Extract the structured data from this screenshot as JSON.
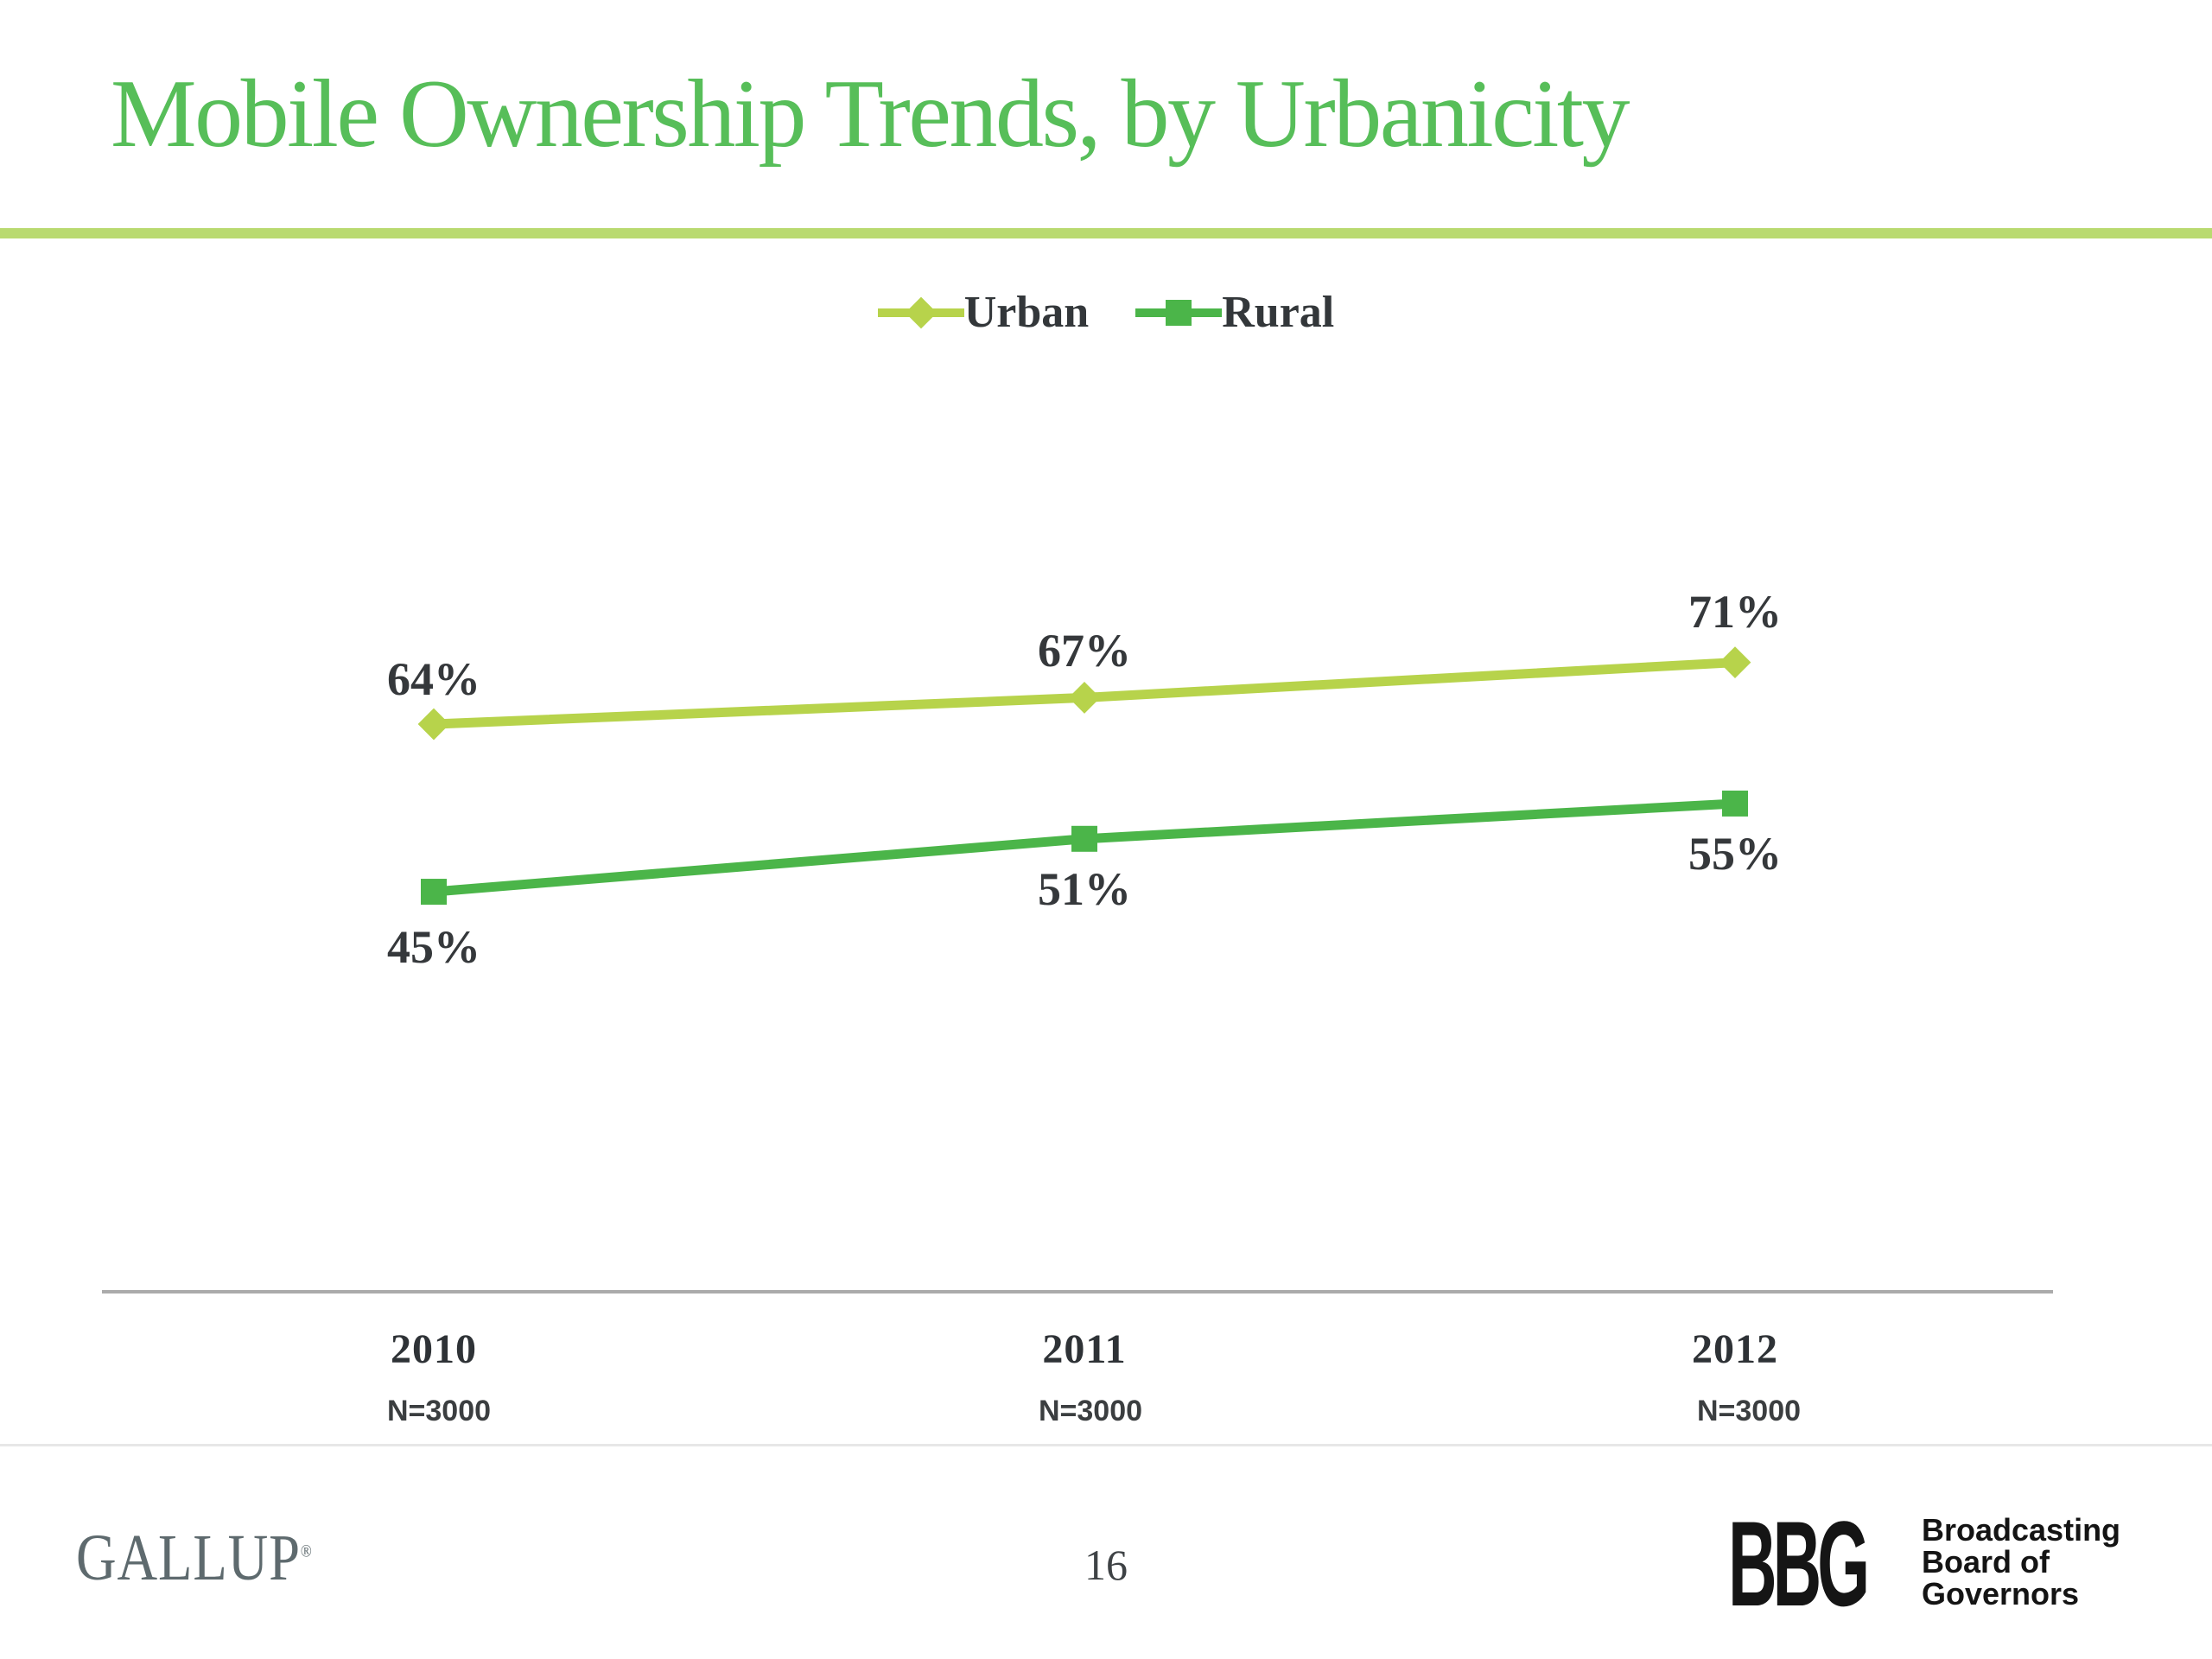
{
  "slide": {
    "title": "Mobile Ownership Trends, by Urbanicity",
    "page_number": "16"
  },
  "colors": {
    "title_green": "#57BE59",
    "divider_green": "#B9DA70",
    "urban_green": "#B7D34B",
    "rural_green": "#4BB549",
    "label_dark": "#35383B",
    "axis_gray": "#ABABAB",
    "gallup_gray": "#5E6A6E",
    "bbg_black": "#151515"
  },
  "chart_data": {
    "type": "line",
    "categories": [
      "2010",
      "2011",
      "2012"
    ],
    "sample_sizes": [
      "N=3000",
      "N=3000",
      "N=3000"
    ],
    "series": [
      {
        "name": "Urban",
        "marker": "diamond",
        "color": "#B7D34B",
        "values": [
          64,
          67,
          71
        ],
        "labels": [
          "64%",
          "67%",
          "71%"
        ]
      },
      {
        "name": "Rural",
        "marker": "square",
        "color": "#4BB549",
        "values": [
          45,
          51,
          55
        ],
        "labels": [
          "45%",
          "51%",
          "55%"
        ]
      }
    ],
    "title": "Mobile Ownership Trends, by Urbanicity",
    "xlabel": "",
    "ylabel": "",
    "ylim": [
      0,
      100
    ],
    "grid": false,
    "legend_position": "top",
    "data_labels": true
  },
  "footer": {
    "gallup": "GALLUP",
    "registered_mark": "®",
    "bbg_acronym": "BBG",
    "bbg_lines": [
      "Broadcasting",
      "Board of",
      "Governors"
    ]
  }
}
